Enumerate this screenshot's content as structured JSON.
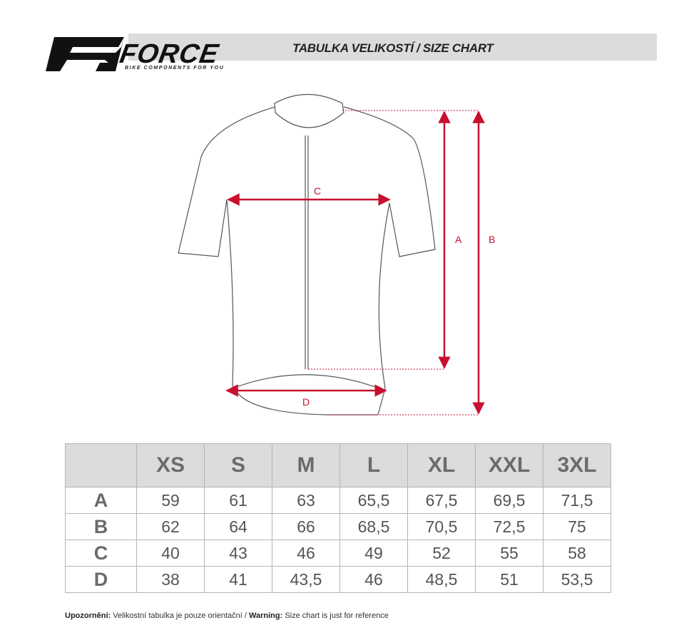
{
  "brand": {
    "name": "FORCE",
    "tagline": "BIKE COMPONENTS FOR YOU"
  },
  "header": {
    "title": "TABULKA VELIKOSTÍ / SIZE CHART"
  },
  "diagram": {
    "labels": {
      "a": "A",
      "b": "B",
      "c": "C",
      "d": "D"
    },
    "arrow_color": "#c8102e"
  },
  "size_table": {
    "sizes": [
      "XS",
      "S",
      "M",
      "L",
      "XL",
      "XXL",
      "3XL"
    ],
    "rows": [
      {
        "label": "A",
        "values": [
          "59",
          "61",
          "63",
          "65,5",
          "67,5",
          "69,5",
          "71,5"
        ]
      },
      {
        "label": "B",
        "values": [
          "62",
          "64",
          "66",
          "68,5",
          "70,5",
          "72,5",
          "75"
        ]
      },
      {
        "label": "C",
        "values": [
          "40",
          "43",
          "46",
          "49",
          "52",
          "55",
          "58"
        ]
      },
      {
        "label": "D",
        "values": [
          "38",
          "41",
          "43,5",
          "46",
          "48,5",
          "51",
          "53,5"
        ]
      }
    ]
  },
  "note": {
    "label_cz": "Upozornění:",
    "text_cz": " Velikostní tabulka je pouze orientační / ",
    "label_en": "Warning:",
    "text_en": " Size chart is just for reference"
  }
}
